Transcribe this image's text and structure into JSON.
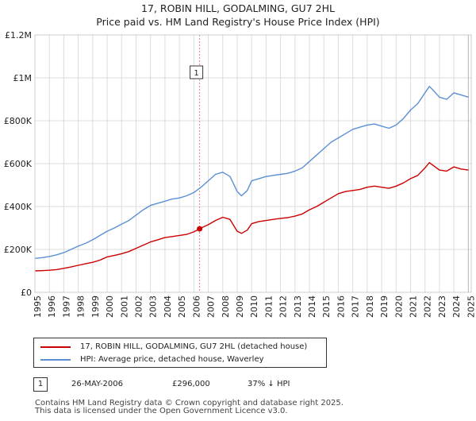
{
  "chart_data": {
    "type": "line",
    "title": "17, ROBIN HILL, GODALMING, GU7 2HL",
    "subtitle": "Price paid vs. HM Land Registry's House Price Index (HPI)",
    "xlabel": "",
    "ylabel": "",
    "xlim": [
      1995,
      2025.2
    ],
    "ylim": [
      0,
      1200000
    ],
    "y_ticks": [
      0,
      200000,
      400000,
      600000,
      800000,
      1000000,
      1200000
    ],
    "y_tick_labels": [
      "£0",
      "£200K",
      "£400K",
      "£600K",
      "£800K",
      "£1M",
      "£1.2M"
    ],
    "x_ticks": [
      1995,
      1996,
      1997,
      1998,
      1999,
      2000,
      2001,
      2002,
      2003,
      2004,
      2005,
      2006,
      2007,
      2008,
      2009,
      2010,
      2011,
      2012,
      2013,
      2014,
      2015,
      2016,
      2017,
      2018,
      2019,
      2020,
      2021,
      2022,
      2023,
      2024,
      2025
    ],
    "x_tick_labels": [
      "1995",
      "1996",
      "1997",
      "1998",
      "1999",
      "2000",
      "2001",
      "2002",
      "2003",
      "2004",
      "2005",
      "2006",
      "2007",
      "2008",
      "2009",
      "2010",
      "2011",
      "2012",
      "2013",
      "2014",
      "2015",
      "2016",
      "2017",
      "2018",
      "2019",
      "2020",
      "2021",
      "2022",
      "2023",
      "2024",
      "2025"
    ],
    "grid": true,
    "series": [
      {
        "name": "17, ROBIN HILL, GODALMING, GU7 2HL (detached house)",
        "color": "#cc0000",
        "x": [
          1995,
          1995.5,
          1996,
          1996.5,
          1997,
          1997.5,
          1998,
          1998.5,
          1999,
          1999.5,
          2000,
          2000.5,
          2001,
          2001.5,
          2002,
          2002.5,
          2003,
          2003.5,
          2004,
          2004.5,
          2005,
          2005.5,
          2006,
          2006.4,
          2006.5,
          2007,
          2007.5,
          2008,
          2008.5,
          2009,
          2009.3,
          2009.7,
          2010,
          2010.5,
          2011,
          2011.5,
          2012,
          2012.5,
          2013,
          2013.5,
          2014,
          2014.5,
          2015,
          2015.5,
          2016,
          2016.5,
          2017,
          2017.5,
          2018,
          2018.5,
          2019,
          2019.5,
          2020,
          2020.5,
          2021,
          2021.5,
          2022,
          2022.3,
          2022.6,
          2023,
          2023.5,
          2024,
          2024.5,
          2025
        ],
        "values": [
          100000,
          101000,
          103000,
          106000,
          112000,
          118000,
          126000,
          133000,
          140000,
          150000,
          165000,
          172000,
          180000,
          190000,
          205000,
          220000,
          235000,
          245000,
          255000,
          260000,
          265000,
          270000,
          282000,
          296000,
          300000,
          315000,
          335000,
          350000,
          340000,
          285000,
          275000,
          290000,
          320000,
          330000,
          335000,
          340000,
          345000,
          348000,
          355000,
          365000,
          385000,
          400000,
          420000,
          440000,
          460000,
          470000,
          475000,
          480000,
          490000,
          495000,
          490000,
          485000,
          495000,
          510000,
          530000,
          545000,
          580000,
          605000,
          590000,
          570000,
          565000,
          585000,
          575000,
          570000
        ]
      },
      {
        "name": "HPI: Average price, detached house, Waverley",
        "color": "#5b8fd4",
        "x": [
          1995,
          1995.5,
          1996,
          1996.5,
          1997,
          1997.5,
          1998,
          1998.5,
          1999,
          1999.5,
          2000,
          2000.5,
          2001,
          2001.5,
          2002,
          2002.5,
          2003,
          2003.5,
          2004,
          2004.5,
          2005,
          2005.5,
          2006,
          2006.5,
          2007,
          2007.5,
          2008,
          2008.5,
          2009,
          2009.3,
          2009.7,
          2010,
          2010.5,
          2011,
          2011.5,
          2012,
          2012.5,
          2013,
          2013.5,
          2014,
          2014.5,
          2015,
          2015.5,
          2016,
          2016.5,
          2017,
          2017.5,
          2018,
          2018.5,
          2019,
          2019.5,
          2020,
          2020.5,
          2021,
          2021.5,
          2022,
          2022.3,
          2022.6,
          2023,
          2023.5,
          2024,
          2024.5,
          2025
        ],
        "values": [
          158000,
          162000,
          167000,
          175000,
          185000,
          200000,
          215000,
          228000,
          245000,
          265000,
          285000,
          300000,
          318000,
          335000,
          360000,
          385000,
          405000,
          415000,
          425000,
          435000,
          440000,
          450000,
          465000,
          490000,
          520000,
          550000,
          560000,
          540000,
          470000,
          450000,
          475000,
          520000,
          530000,
          540000,
          545000,
          550000,
          555000,
          565000,
          580000,
          610000,
          640000,
          670000,
          700000,
          720000,
          740000,
          760000,
          770000,
          780000,
          785000,
          775000,
          765000,
          780000,
          810000,
          850000,
          880000,
          930000,
          960000,
          940000,
          910000,
          900000,
          930000,
          920000,
          910000
        ]
      }
    ],
    "annotations": [
      {
        "label": "1",
        "x": 2006.4,
        "y": 296000,
        "type": "sale-marker"
      }
    ]
  },
  "legend": {
    "property_label": "17, ROBIN HILL, GODALMING, GU7 2HL (detached house)",
    "hpi_label": "HPI: Average price, detached house, Waverley"
  },
  "sale": {
    "number": "1",
    "date": "26-MAY-2006",
    "price": "£296,000",
    "hpi_diff": "37% ↓ HPI"
  },
  "footer": {
    "line1": "Contains HM Land Registry data © Crown copyright and database right 2025.",
    "line2": "This data is licensed under the Open Government Licence v3.0."
  }
}
